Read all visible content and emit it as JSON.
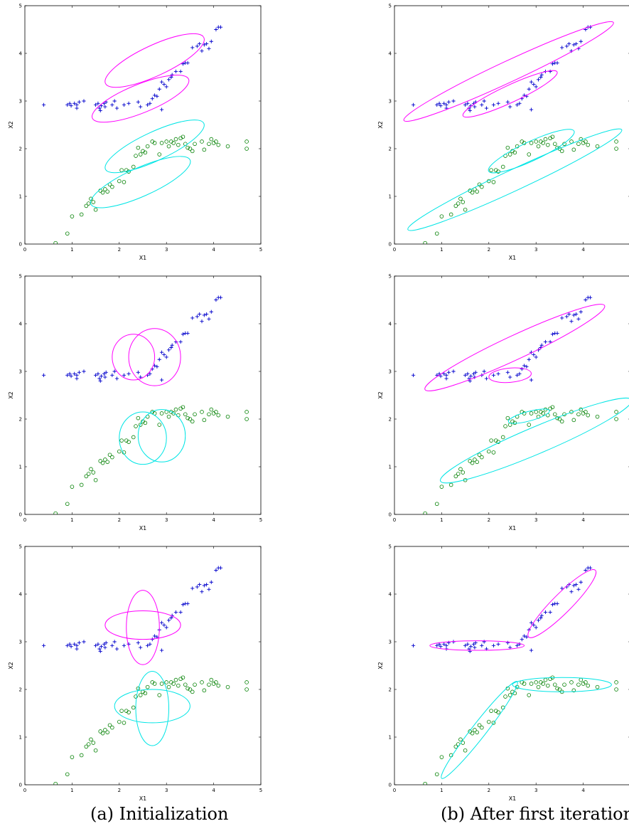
{
  "captions": {
    "left": "(a) Initialization",
    "right": "(b) After first iteration"
  },
  "chart_data": [
    {
      "id": "a1",
      "type": "scatter",
      "xlabel": "X1",
      "ylabel": "X2",
      "xlim": [
        0,
        5
      ],
      "ylim": [
        0,
        5
      ],
      "xticks": [
        "0",
        "1",
        "2",
        "3",
        "4",
        "5"
      ],
      "yticks": [
        "0",
        "1",
        "2",
        "3",
        "4",
        "5"
      ],
      "ellipses": [
        {
          "color": "#ff00ff",
          "cx": 2.75,
          "cy": 3.85,
          "rx": 1.15,
          "ry": 0.32,
          "angle": 25
        },
        {
          "color": "#ff00ff",
          "cx": 2.45,
          "cy": 3.05,
          "rx": 1.1,
          "ry": 0.3,
          "angle": 22
        },
        {
          "color": "#00e5e5",
          "cx": 2.75,
          "cy": 2.05,
          "rx": 1.15,
          "ry": 0.3,
          "angle": 25
        },
        {
          "color": "#00e5e5",
          "cx": 2.45,
          "cy": 1.3,
          "rx": 1.15,
          "ry": 0.3,
          "angle": 24
        }
      ]
    },
    {
      "id": "b1",
      "type": "scatter",
      "xlabel": "X1",
      "ylabel": "X2",
      "xlim": [
        0,
        5
      ],
      "ylim": [
        0,
        5
      ],
      "xticks": [
        "0",
        "1",
        "2",
        "3",
        "4",
        "5"
      ],
      "yticks": [
        "0",
        "1",
        "2",
        "3",
        "4",
        "5"
      ],
      "ellipses": [
        {
          "color": "#ff00ff",
          "cx": 2.42,
          "cy": 3.62,
          "rx": 2.45,
          "ry": 0.22,
          "angle": 25
        },
        {
          "color": "#ff00ff",
          "cx": 2.45,
          "cy": 3.15,
          "rx": 1.1,
          "ry": 0.18,
          "angle": 25
        },
        {
          "color": "#00e5e5",
          "cx": 2.9,
          "cy": 1.95,
          "rx": 1.0,
          "ry": 0.2,
          "angle": 25
        },
        {
          "color": "#00e5e5",
          "cx": 2.55,
          "cy": 1.35,
          "rx": 2.5,
          "ry": 0.22,
          "angle": 25
        }
      ]
    },
    {
      "id": "a2",
      "type": "scatter",
      "xlabel": "X1",
      "ylabel": "X2",
      "xlim": [
        0,
        5
      ],
      "ylim": [
        0,
        5
      ],
      "xticks": [
        "0",
        "1",
        "2",
        "3",
        "4",
        "5"
      ],
      "yticks": [
        "0",
        "1",
        "2",
        "3",
        "4",
        "5"
      ],
      "ellipses": [
        {
          "color": "#ff00ff",
          "cx": 2.3,
          "cy": 3.3,
          "rx": 0.45,
          "ry": 0.48,
          "angle": 0
        },
        {
          "color": "#ff00ff",
          "cx": 2.75,
          "cy": 3.3,
          "rx": 0.55,
          "ry": 0.6,
          "angle": 0
        },
        {
          "color": "#00e5e5",
          "cx": 2.5,
          "cy": 1.6,
          "rx": 0.5,
          "ry": 0.55,
          "angle": 0
        },
        {
          "color": "#00e5e5",
          "cx": 2.9,
          "cy": 1.65,
          "rx": 0.5,
          "ry": 0.55,
          "angle": 0
        }
      ]
    },
    {
      "id": "b2",
      "type": "scatter",
      "xlabel": "X1",
      "ylabel": "X2",
      "xlim": [
        0,
        5
      ],
      "ylim": [
        0,
        5
      ],
      "xticks": [
        "0",
        "1",
        "2",
        "3",
        "4",
        "5"
      ],
      "yticks": [
        "0",
        "1",
        "2",
        "3",
        "4",
        "5"
      ],
      "ellipses": [
        {
          "color": "#ff00ff",
          "cx": 2.55,
          "cy": 3.5,
          "rx": 2.1,
          "ry": 0.25,
          "angle": 25
        },
        {
          "color": "#ff00ff",
          "cx": 2.45,
          "cy": 2.92,
          "rx": 0.45,
          "ry": 0.15,
          "angle": 5
        },
        {
          "color": "#00e5e5",
          "cx": 2.85,
          "cy": 2.06,
          "rx": 0.45,
          "ry": 0.1,
          "angle": 15
        },
        {
          "color": "#00e5e5",
          "cx": 3.0,
          "cy": 1.55,
          "rx": 2.2,
          "ry": 0.28,
          "angle": 23
        }
      ]
    },
    {
      "id": "a3",
      "type": "scatter",
      "xlabel": "X1",
      "ylabel": "X2",
      "xlim": [
        0,
        5
      ],
      "ylim": [
        0,
        5
      ],
      "xticks": [
        "0",
        "1",
        "2",
        "3",
        "4",
        "5"
      ],
      "yticks": [
        "0",
        "1",
        "2",
        "3",
        "4",
        "5"
      ],
      "ellipses": [
        {
          "color": "#ff00ff",
          "cx": 2.5,
          "cy": 3.35,
          "rx": 0.8,
          "ry": 0.3,
          "angle": 0
        },
        {
          "color": "#ff00ff",
          "cx": 2.5,
          "cy": 3.3,
          "rx": 0.35,
          "ry": 0.78,
          "angle": 0
        },
        {
          "color": "#00e5e5",
          "cx": 2.7,
          "cy": 1.6,
          "rx": 0.35,
          "ry": 0.78,
          "angle": 0
        },
        {
          "color": "#00e5e5",
          "cx": 2.7,
          "cy": 1.65,
          "rx": 0.8,
          "ry": 0.35,
          "angle": 0
        }
      ]
    },
    {
      "id": "b3",
      "type": "scatter",
      "xlabel": "X1",
      "ylabel": "X2",
      "xlim": [
        0,
        5
      ],
      "ylim": [
        0,
        5
      ],
      "xticks": [
        "0",
        "1",
        "2",
        "3",
        "4",
        "5"
      ],
      "yticks": [
        "0",
        "1",
        "2",
        "3",
        "4",
        "5"
      ],
      "ellipses": [
        {
          "color": "#ff00ff",
          "cx": 1.75,
          "cy": 2.92,
          "rx": 1.0,
          "ry": 0.1,
          "angle": 0
        },
        {
          "color": "#ff00ff",
          "cx": 3.55,
          "cy": 3.8,
          "rx": 1.0,
          "ry": 0.2,
          "angle": 45
        },
        {
          "color": "#00e5e5",
          "cx": 1.8,
          "cy": 1.15,
          "rx": 1.3,
          "ry": 0.15,
          "angle": 52
        },
        {
          "color": "#00e5e5",
          "cx": 3.55,
          "cy": 2.1,
          "rx": 1.05,
          "ry": 0.15,
          "angle": 0
        }
      ]
    }
  ],
  "points": {
    "plus": {
      "color": "#0000cc",
      "xy": [
        [
          0.4,
          2.92
        ],
        [
          0.9,
          2.92
        ],
        [
          0.95,
          2.95
        ],
        [
          0.98,
          2.9
        ],
        [
          1.05,
          2.95
        ],
        [
          1.1,
          2.92
        ],
        [
          1.15,
          2.98
        ],
        [
          1.1,
          2.85
        ],
        [
          1.25,
          3.0
        ],
        [
          1.5,
          2.92
        ],
        [
          1.55,
          2.95
        ],
        [
          1.58,
          2.85
        ],
        [
          1.6,
          2.8
        ],
        [
          1.62,
          2.9
        ],
        [
          1.68,
          2.95
        ],
        [
          1.72,
          2.98
        ],
        [
          1.7,
          2.88
        ],
        [
          1.85,
          2.92
        ],
        [
          1.9,
          3.0
        ],
        [
          1.95,
          2.85
        ],
        [
          2.1,
          2.92
        ],
        [
          2.2,
          2.95
        ],
        [
          2.4,
          2.98
        ],
        [
          2.45,
          2.88
        ],
        [
          2.6,
          2.92
        ],
        [
          2.65,
          2.95
        ],
        [
          2.7,
          3.05
        ],
        [
          2.75,
          3.12
        ],
        [
          2.8,
          3.1
        ],
        [
          2.85,
          3.25
        ],
        [
          2.9,
          3.4
        ],
        [
          2.9,
          2.82
        ],
        [
          2.95,
          3.35
        ],
        [
          3.0,
          3.3
        ],
        [
          3.05,
          3.45
        ],
        [
          3.1,
          3.5
        ],
        [
          3.12,
          3.55
        ],
        [
          3.2,
          3.62
        ],
        [
          3.3,
          3.62
        ],
        [
          3.35,
          3.78
        ],
        [
          3.4,
          3.8
        ],
        [
          3.45,
          3.8
        ],
        [
          3.55,
          4.12
        ],
        [
          3.65,
          4.15
        ],
        [
          3.7,
          4.2
        ],
        [
          3.75,
          4.05
        ],
        [
          3.8,
          4.18
        ],
        [
          3.85,
          4.2
        ],
        [
          3.9,
          4.1
        ],
        [
          3.95,
          4.25
        ],
        [
          4.05,
          4.5
        ],
        [
          4.1,
          4.55
        ],
        [
          4.15,
          4.55
        ]
      ]
    },
    "circle": {
      "color": "#008000",
      "xy": [
        [
          0.65,
          0.02
        ],
        [
          0.9,
          0.22
        ],
        [
          1.0,
          0.58
        ],
        [
          1.2,
          0.62
        ],
        [
          1.3,
          0.8
        ],
        [
          1.35,
          0.85
        ],
        [
          1.4,
          0.95
        ],
        [
          1.45,
          0.88
        ],
        [
          1.5,
          0.72
        ],
        [
          1.6,
          1.12
        ],
        [
          1.65,
          1.08
        ],
        [
          1.7,
          1.15
        ],
        [
          1.75,
          1.1
        ],
        [
          1.8,
          1.25
        ],
        [
          1.85,
          1.2
        ],
        [
          2.0,
          1.32
        ],
        [
          2.05,
          1.55
        ],
        [
          2.1,
          1.3
        ],
        [
          2.15,
          1.55
        ],
        [
          2.2,
          1.52
        ],
        [
          2.3,
          1.62
        ],
        [
          2.35,
          1.85
        ],
        [
          2.4,
          2.02
        ],
        [
          2.45,
          1.88
        ],
        [
          2.5,
          1.95
        ],
        [
          2.55,
          1.92
        ],
        [
          2.6,
          2.05
        ],
        [
          2.7,
          2.15
        ],
        [
          2.75,
          2.12
        ],
        [
          2.85,
          1.88
        ],
        [
          2.9,
          2.12
        ],
        [
          3.0,
          2.15
        ],
        [
          3.05,
          2.05
        ],
        [
          3.1,
          2.15
        ],
        [
          3.15,
          2.12
        ],
        [
          3.2,
          2.2
        ],
        [
          3.25,
          2.08
        ],
        [
          3.3,
          2.22
        ],
        [
          3.35,
          2.25
        ],
        [
          3.4,
          2.1
        ],
        [
          3.45,
          2.02
        ],
        [
          3.5,
          2.0
        ],
        [
          3.55,
          1.95
        ],
        [
          3.6,
          2.1
        ],
        [
          3.75,
          2.15
        ],
        [
          3.8,
          1.98
        ],
        [
          3.9,
          2.1
        ],
        [
          3.95,
          2.2
        ],
        [
          4.0,
          2.12
        ],
        [
          4.05,
          2.15
        ],
        [
          4.1,
          2.08
        ],
        [
          4.3,
          2.05
        ],
        [
          4.7,
          2.15
        ],
        [
          4.7,
          2.0
        ]
      ]
    }
  }
}
